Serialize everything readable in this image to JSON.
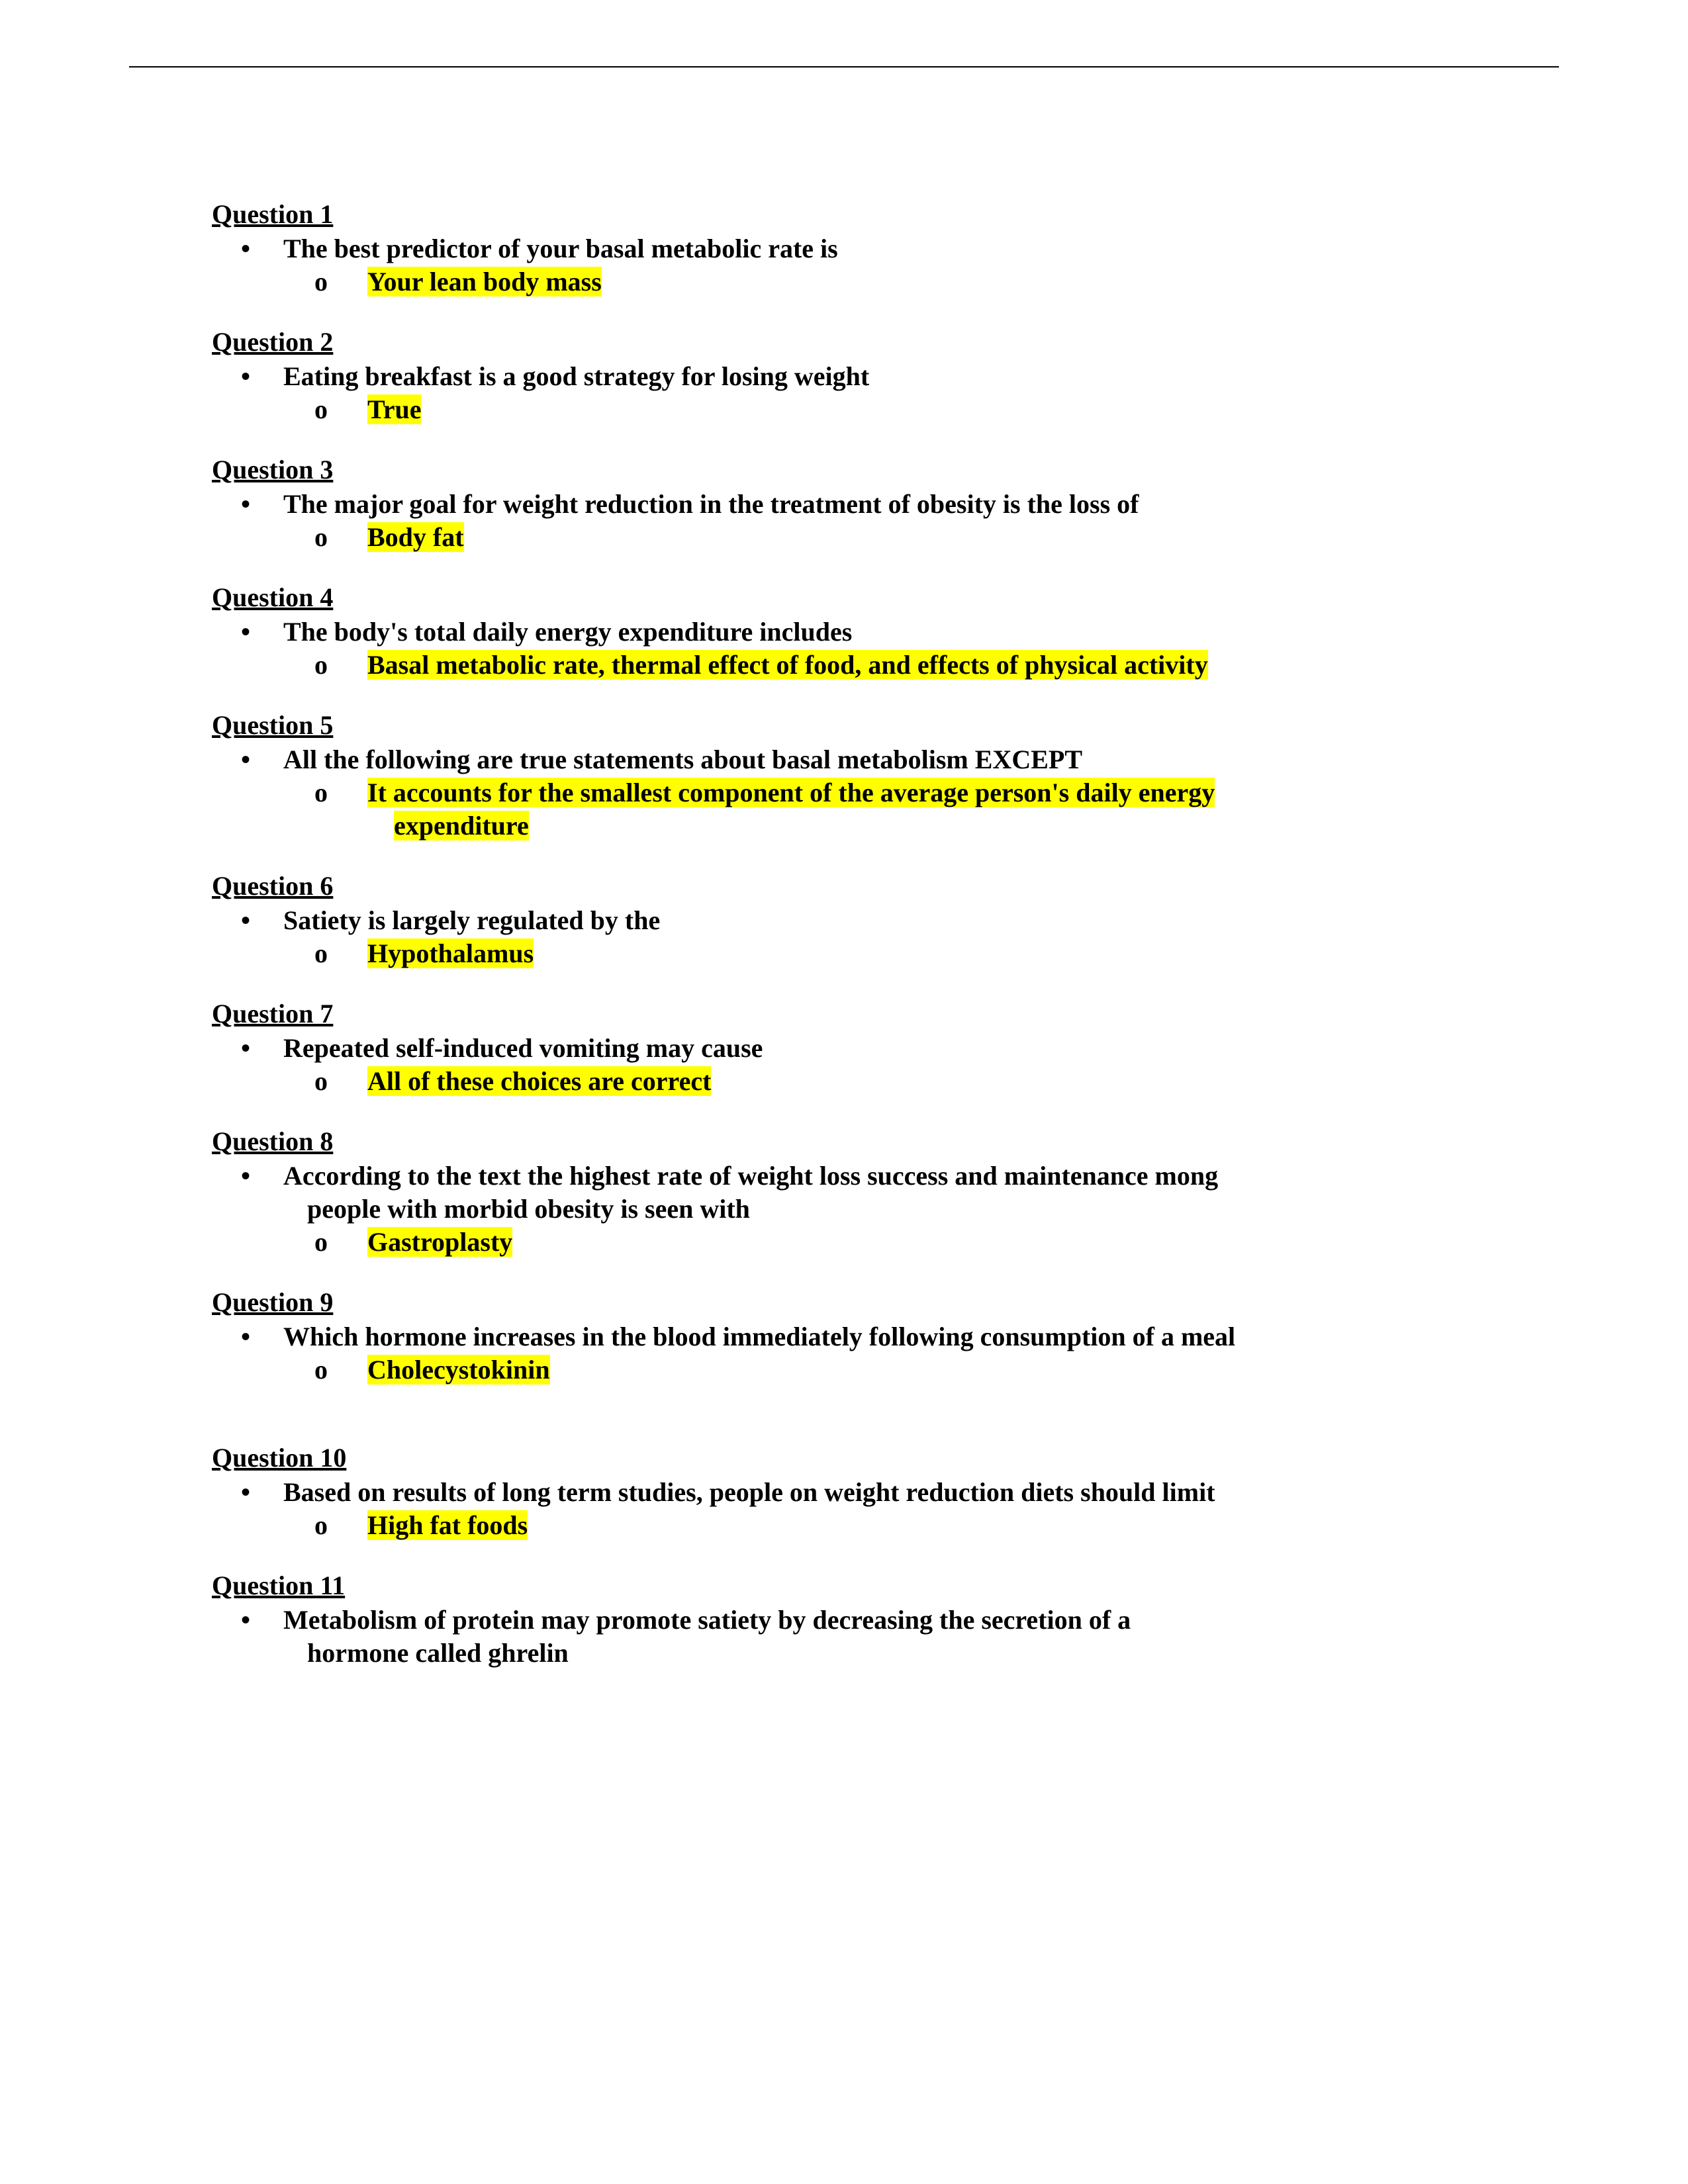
{
  "questions": [
    {
      "title": "Question 1",
      "text": "The best predictor of your basal metabolic rate is",
      "answer": "Your lean body mass",
      "highlighted": true
    },
    {
      "title": "Question 2",
      "text": "Eating breakfast is a good strategy for losing weight",
      "answer": "True",
      "highlighted": true
    },
    {
      "title": "Question 3",
      "text": "The major goal for weight reduction in the treatment of obesity is the loss of",
      "answer": "Body fat",
      "highlighted": true
    },
    {
      "title": "Question 4",
      "text": "The body's total daily energy expenditure includes",
      "answer": "Basal metabolic rate, thermal effect of food, and effects of physical activity",
      "highlighted": true
    },
    {
      "title": "Question 5",
      "text": "All the following are true statements about basal metabolism EXCEPT",
      "answer_line1": "It accounts for the smallest component of the average person's daily energy",
      "answer_line2": "expenditure",
      "highlighted": true
    },
    {
      "title": "Question 6",
      "text": "Satiety is largely regulated by the",
      "answer": "Hypothalamus",
      "highlighted": true
    },
    {
      "title": "Question 7",
      "text": "Repeated self-induced vomiting may cause",
      "answer": "All of these choices are correct",
      "highlighted": true
    },
    {
      "title": "Question 8",
      "text_line1": "According to the text the highest rate of weight loss success and maintenance mong",
      "text_line2": "people with morbid obesity is seen with",
      "answer": "Gastroplasty",
      "highlighted": true
    },
    {
      "title": "Question 9",
      "text": "Which hormone increases in the blood immediately following consumption of a meal",
      "answer": "Cholecystokinin",
      "highlighted": true
    },
    {
      "title": "Question 10",
      "text": "Based on results of long term studies, people on weight reduction diets should limit",
      "answer": "High fat foods",
      "highlighted": true
    },
    {
      "title": "Question 11",
      "text_line1": "Metabolism of protein may promote satiety by decreasing the secretion of a",
      "text_line2": "hormone called ghrelin",
      "answer": "",
      "highlighted": false
    }
  ],
  "bullet_char": "•",
  "sub_bullet": "o"
}
